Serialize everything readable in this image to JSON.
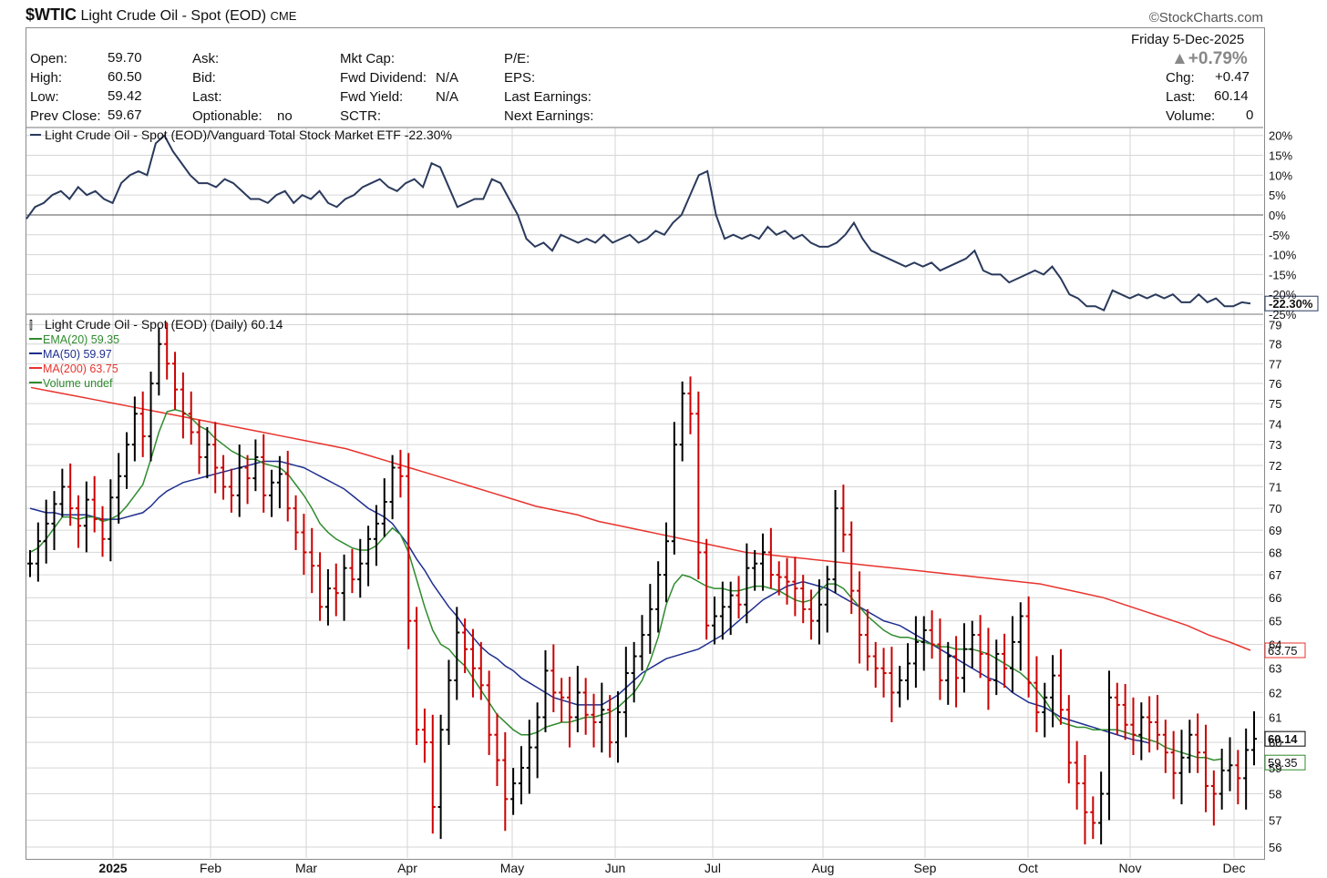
{
  "header": {
    "symbol": "$WTIC",
    "name": "Light Crude Oil - Spot (EOD)",
    "exchange": "CME",
    "brand": "©StockCharts.com",
    "date": "Friday  5-Dec-2025",
    "pct_change": "▲+0.79%",
    "open_label": "Open:",
    "open": "59.70",
    "high_label": "High:",
    "high": "60.50",
    "low_label": "Low:",
    "low": "59.42",
    "prev_label": "Prev Close:",
    "prev": "59.67",
    "ask_label": "Ask:",
    "bid_label": "Bid:",
    "last_label": "Last:",
    "optionable_label": "Optionable:",
    "optionable": "no",
    "mktcap_label": "Mkt Cap:",
    "fwd_div_label": "Fwd Dividend:",
    "fwd_div": "N/A",
    "fwd_yield_label": "Fwd Yield:",
    "fwd_yield": "N/A",
    "sctr_label": "SCTR:",
    "pe_label": "P/E:",
    "eps_label": "EPS:",
    "last_earn_label": "Last Earnings:",
    "next_earn_label": "Next Earnings:",
    "chg_label": "Chg:",
    "chg": "+0.47",
    "last2_label": "Last:",
    "last2": "60.14",
    "volume_label": "Volume:",
    "volume": "0"
  },
  "colors": {
    "up": "#000000",
    "down": "#cc0000",
    "ema": "#2e8b2e",
    "ma50": "#1f2f8f",
    "ma200": "#e8332d",
    "ratio": "#2a3a5c",
    "grid": "#d6d6d6"
  },
  "chart_data": [
    {
      "type": "line",
      "title": "Light Crude Oil - Spot (EOD)/Vanguard Total Stock Market ETF -22.30%",
      "ylim": [
        -25,
        22
      ],
      "y_ticks": [
        "20%",
        "15%",
        "10%",
        "5%",
        "0%",
        "-5%",
        "-10%",
        "-15%",
        "-20%",
        "-25%"
      ],
      "last_value_label": "-22.30%",
      "series": [
        {
          "name": "Light Crude Oil - Spot (EOD)/Vanguard Total Stock Market ETF",
          "values": [
            -1,
            2,
            3,
            5,
            6,
            4,
            7,
            5,
            6,
            4,
            3,
            8,
            10,
            11,
            10,
            18,
            20,
            16,
            13,
            10,
            8,
            8,
            7,
            9,
            8,
            6,
            4,
            4,
            3,
            5,
            6,
            3,
            5,
            4,
            6,
            3,
            2,
            4,
            5,
            7,
            8,
            9,
            7,
            6,
            8,
            9,
            7,
            13,
            12,
            7,
            2,
            3,
            4,
            4,
            9,
            8,
            4,
            0,
            -6,
            -8,
            -7,
            -9,
            -5,
            -6,
            -7,
            -6,
            -7,
            -5,
            -7,
            -6,
            -5,
            -7,
            -6,
            -4,
            -5,
            -2,
            0,
            5,
            10,
            11,
            0,
            -6,
            -5,
            -6,
            -5,
            -6,
            -3,
            -5,
            -4,
            -6,
            -5,
            -7,
            -8,
            -8,
            -7,
            -5,
            -2,
            -6,
            -9,
            -10,
            -11,
            -12,
            -13,
            -12,
            -13,
            -12,
            -14,
            -13,
            -12,
            -11,
            -9,
            -14,
            -15,
            -15,
            -17,
            -16,
            -15,
            -14,
            -15,
            -13,
            -16,
            -20,
            -21,
            -23,
            -23,
            -24,
            -19,
            -20,
            -21,
            -20,
            -21,
            -20,
            -21,
            -20,
            -22,
            -22,
            -20,
            -22,
            -21,
            -23,
            -23,
            -22,
            -22.3
          ]
        }
      ],
      "x_ticks": [
        "2025",
        "Feb",
        "Mar",
        "Apr",
        "May",
        "Jun",
        "Jul",
        "Aug",
        "Sep",
        "Oct",
        "Nov",
        "Dec"
      ]
    },
    {
      "type": "bar",
      "title": "Light Crude Oil - Spot (EOD) (Daily) 60.14",
      "ylabel": "",
      "ylim": [
        55.6,
        79.5
      ],
      "y_ticks": [
        56,
        57,
        58,
        59,
        60,
        61,
        62,
        63,
        64,
        65,
        66,
        67,
        68,
        69,
        70,
        71,
        72,
        73,
        74,
        75,
        76,
        77,
        78,
        79
      ],
      "log_scale": true,
      "x_ticks": [
        "2025",
        "Feb",
        "Mar",
        "Apr",
        "May",
        "Jun",
        "Jul",
        "Aug",
        "Sep",
        "Oct",
        "Nov",
        "Dec"
      ],
      "legend": [
        {
          "label": "EMA(20) 59.35",
          "color": "#2e8b2e"
        },
        {
          "label": "MA(50) 59.97",
          "color": "#1f2f8f"
        },
        {
          "label": "MA(200) 63.75",
          "color": "#e8332d"
        },
        {
          "label": "Volume undef",
          "color": "#2e8b2e"
        }
      ],
      "price_labels": [
        "63.75",
        "60.14",
        "59.35"
      ],
      "close": [
        67.5,
        68.5,
        69.3,
        70.2,
        71.0,
        70.0,
        69.2,
        70.4,
        69.5,
        68.6,
        70.5,
        71.5,
        73.0,
        74.5,
        73.4,
        76.0,
        78.0,
        77.0,
        75.7,
        74.5,
        73.6,
        72.4,
        73.0,
        71.9,
        71.0,
        70.6,
        71.9,
        71.4,
        72.4,
        70.6,
        71.2,
        71.6,
        70.0,
        68.9,
        68.0,
        67.4,
        65.6,
        66.4,
        66.2,
        67.3,
        66.8,
        67.5,
        68.6,
        69.3,
        70.3,
        71.9,
        71.5,
        65.0,
        60.5,
        60.0,
        57.5,
        60.5,
        62.5,
        64.5,
        63.8,
        63.0,
        62.3,
        60.3,
        59.3,
        57.8,
        58.4,
        59.0,
        59.8,
        61.0,
        62.9,
        62.0,
        61.8,
        61.0,
        62.0,
        61.1,
        60.8,
        61.3,
        60.0,
        61.2,
        62.8,
        63.5,
        64.4,
        65.5,
        67.0,
        68.5,
        73.0,
        75.5,
        74.5,
        68.0,
        64.8,
        65.2,
        65.6,
        66.1,
        65.7,
        67.3,
        67.5,
        68.0,
        67.0,
        66.9,
        66.7,
        66.4,
        65.5,
        65.0,
        65.7,
        66.8,
        70.0,
        68.8,
        66.3,
        64.4,
        63.5,
        63.0,
        62.8,
        62.0,
        62.5,
        63.2,
        64.1,
        64.6,
        64.0,
        62.5,
        63.5,
        62.6,
        63.8,
        64.4,
        63.6,
        62.5,
        63.6,
        63.0,
        64.1,
        65.2,
        62.4,
        61.2,
        61.8,
        62.7,
        61.3,
        59.2,
        58.4,
        57.3,
        56.9,
        58.0,
        61.8,
        61.5,
        60.7,
        60.3,
        61.0,
        60.8,
        60.3,
        59.6,
        58.8,
        59.4,
        60.3,
        59.6,
        58.3,
        58.0,
        58.9,
        59.1,
        58.6,
        59.7,
        60.14
      ],
      "ema20": [
        68.0,
        68.2,
        68.6,
        69.1,
        69.6,
        69.6,
        69.5,
        69.6,
        69.6,
        69.4,
        69.5,
        69.7,
        70.1,
        70.6,
        71.1,
        72.3,
        73.6,
        74.6,
        74.7,
        74.6,
        74.3,
        73.9,
        73.7,
        73.3,
        73.0,
        72.7,
        72.5,
        72.3,
        72.3,
        72.1,
        72.0,
        71.9,
        71.6,
        71.1,
        70.6,
        70.0,
        69.3,
        68.9,
        68.6,
        68.4,
        68.2,
        68.1,
        68.1,
        68.3,
        68.7,
        69.1,
        68.8,
        68.0,
        66.8,
        65.6,
        64.6,
        64.0,
        63.8,
        63.4,
        63.1,
        62.6,
        62.1,
        61.6,
        61.1,
        60.8,
        60.5,
        60.3,
        60.3,
        60.4,
        60.6,
        60.7,
        60.8,
        60.8,
        60.9,
        61.0,
        61.0,
        61.1,
        61.2,
        61.4,
        61.7,
        62.0,
        62.5,
        63.3,
        64.3,
        65.7,
        66.6,
        67.0,
        66.9,
        66.7,
        66.5,
        66.4,
        66.4,
        66.3,
        66.3,
        66.4,
        66.5,
        66.5,
        66.4,
        66.3,
        66.1,
        65.9,
        65.8,
        65.9,
        66.3,
        66.6,
        66.6,
        66.4,
        66.0,
        65.6,
        65.2,
        64.9,
        64.6,
        64.4,
        64.3,
        64.3,
        64.2,
        64.1,
        64.0,
        63.9,
        63.9,
        63.8,
        63.8,
        63.8,
        63.7,
        63.6,
        63.4,
        63.2,
        63.0,
        62.8,
        62.5,
        62.1,
        61.7,
        61.2,
        60.8,
        60.7,
        60.6,
        60.6,
        60.5,
        60.5,
        60.5,
        60.5,
        60.4,
        60.3,
        60.2,
        60.1,
        60.0,
        59.8,
        59.7,
        59.6,
        59.5,
        59.4,
        59.4,
        59.3,
        59.35
      ],
      "ma50": [
        70.0,
        69.9,
        69.8,
        69.8,
        69.7,
        69.7,
        69.7,
        69.7,
        69.6,
        69.5,
        69.5,
        69.5,
        69.6,
        69.7,
        69.8,
        70.1,
        70.5,
        70.8,
        71.0,
        71.2,
        71.3,
        71.4,
        71.5,
        71.6,
        71.7,
        71.8,
        71.9,
        72.0,
        72.1,
        72.2,
        72.2,
        72.2,
        72.1,
        72.0,
        71.9,
        71.7,
        71.5,
        71.3,
        71.1,
        70.9,
        70.6,
        70.3,
        70.0,
        69.8,
        69.6,
        69.3,
        68.8,
        68.3,
        67.7,
        67.2,
        66.6,
        66.1,
        65.6,
        65.2,
        64.7,
        64.3,
        63.9,
        63.6,
        63.4,
        63.1,
        62.9,
        62.6,
        62.4,
        62.2,
        62.0,
        61.8,
        61.7,
        61.6,
        61.5,
        61.5,
        61.5,
        61.5,
        61.7,
        61.9,
        62.2,
        62.5,
        62.8,
        63.0,
        63.2,
        63.4,
        63.5,
        63.6,
        63.7,
        63.8,
        64.0,
        64.2,
        64.4,
        64.7,
        65.0,
        65.3,
        65.6,
        65.9,
        66.1,
        66.3,
        66.5,
        66.6,
        66.7,
        66.6,
        66.5,
        66.4,
        66.2,
        66.0,
        65.8,
        65.6,
        65.4,
        65.2,
        65.0,
        64.9,
        64.8,
        64.6,
        64.4,
        64.2,
        64.0,
        63.8,
        63.6,
        63.4,
        63.2,
        63.0,
        62.8,
        62.6,
        62.5,
        62.3,
        62.0,
        61.8,
        61.6,
        61.5,
        61.4,
        61.2,
        61.0,
        60.9,
        60.8,
        60.7,
        60.6,
        60.5,
        60.4,
        60.3,
        60.2,
        60.1,
        60.05,
        59.97
      ],
      "ma200": [
        75.8,
        75.6,
        75.4,
        75.2,
        75.0,
        74.8,
        74.6,
        74.4,
        74.2,
        74.0,
        73.8,
        73.6,
        73.4,
        73.2,
        73.0,
        72.8,
        72.5,
        72.2,
        71.9,
        71.6,
        71.3,
        71.0,
        70.7,
        70.4,
        70.1,
        69.9,
        69.7,
        69.4,
        69.2,
        69.0,
        68.8,
        68.6,
        68.4,
        68.2,
        68.0,
        67.9,
        67.8,
        67.7,
        67.6,
        67.5,
        67.4,
        67.3,
        67.2,
        67.1,
        67.0,
        66.9,
        66.8,
        66.7,
        66.6,
        66.4,
        66.2,
        66.0,
        65.7,
        65.4,
        65.1,
        64.8,
        64.4,
        64.1,
        63.75
      ]
    }
  ]
}
